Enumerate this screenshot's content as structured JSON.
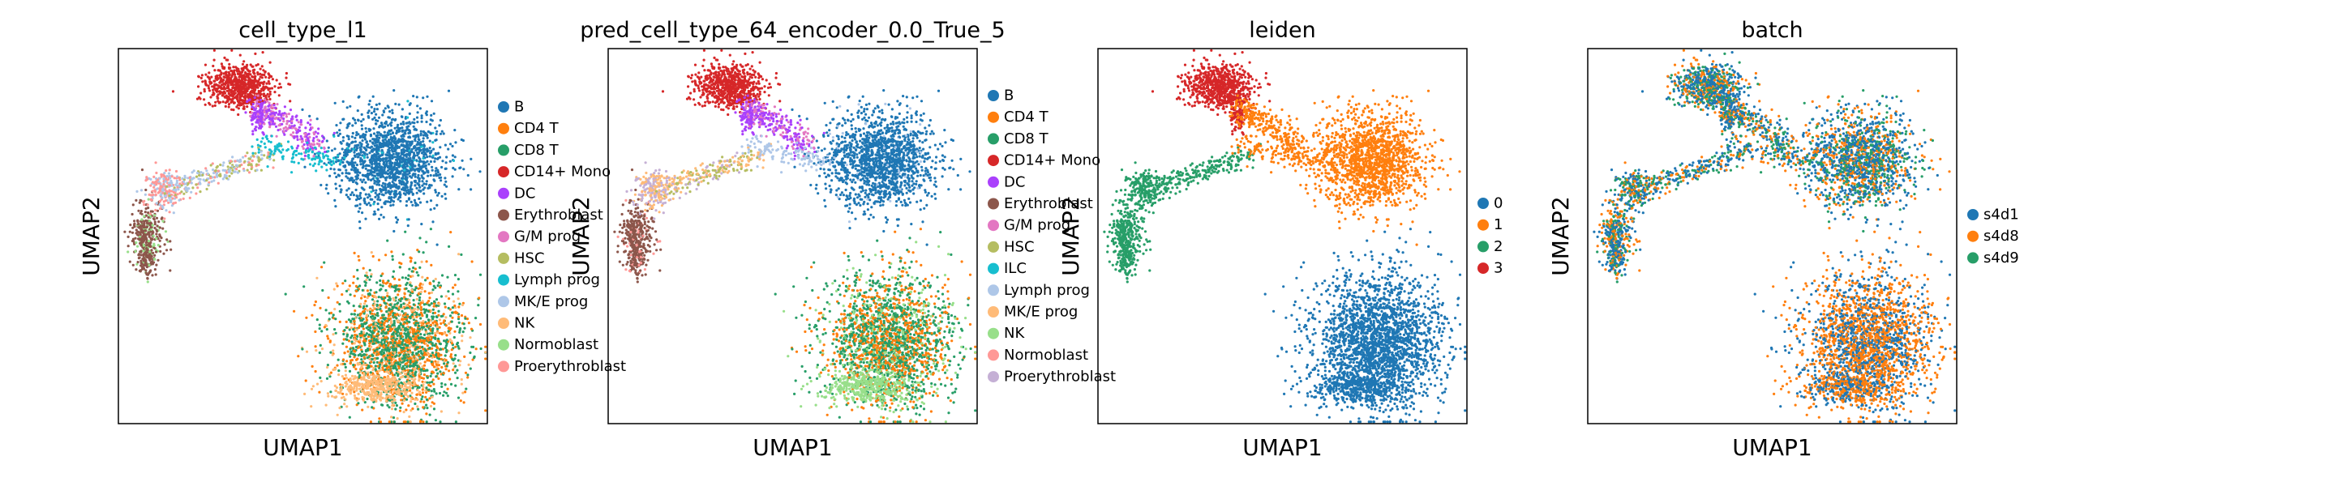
{
  "chart_data": [
    {
      "type": "scatter",
      "title": "cell_type_l1",
      "xlabel": "UMAP1",
      "ylabel": "UMAP2",
      "legend_placement": "right",
      "grid": false,
      "legend": [
        {
          "label": "B",
          "color": "#1f77b4"
        },
        {
          "label": "CD4 T",
          "color": "#ff7f0e"
        },
        {
          "label": "CD8 T",
          "color": "#279e68"
        },
        {
          "label": "CD14+ Mono",
          "color": "#d62728"
        },
        {
          "label": "DC",
          "color": "#aa40fc"
        },
        {
          "label": "Erythroblast",
          "color": "#8c564b"
        },
        {
          "label": "G/M prog",
          "color": "#e377c2"
        },
        {
          "label": "HSC",
          "color": "#b5bd61"
        },
        {
          "label": "Lymph prog",
          "color": "#17becf"
        },
        {
          "label": "MK/E prog",
          "color": "#aec7e8"
        },
        {
          "label": "NK",
          "color": "#ffbb78"
        },
        {
          "label": "Normoblast",
          "color": "#98df8a"
        },
        {
          "label": "Proerythroblast",
          "color": "#ff9896"
        }
      ]
    },
    {
      "type": "scatter",
      "title": "pred_cell_type_64_encoder_0.0_True_5",
      "xlabel": "UMAP1",
      "ylabel": "UMAP2",
      "legend_placement": "right",
      "grid": false,
      "legend": [
        {
          "label": "B",
          "color": "#1f77b4"
        },
        {
          "label": "CD4 T",
          "color": "#ff7f0e"
        },
        {
          "label": "CD8 T",
          "color": "#279e68"
        },
        {
          "label": "CD14+ Mono",
          "color": "#d62728"
        },
        {
          "label": "DC",
          "color": "#aa40fc"
        },
        {
          "label": "Erythroblast",
          "color": "#8c564b"
        },
        {
          "label": "G/M prog",
          "color": "#e377c2"
        },
        {
          "label": "HSC",
          "color": "#b5bd61"
        },
        {
          "label": "ILC",
          "color": "#17becf"
        },
        {
          "label": "Lymph prog",
          "color": "#aec7e8"
        },
        {
          "label": "MK/E prog",
          "color": "#ffbb78"
        },
        {
          "label": "NK",
          "color": "#98df8a"
        },
        {
          "label": "Normoblast",
          "color": "#ff9896"
        },
        {
          "label": "Proerythroblast",
          "color": "#c5b0d5"
        }
      ]
    },
    {
      "type": "scatter",
      "title": "leiden",
      "xlabel": "UMAP1",
      "ylabel": "UMAP2",
      "legend_placement": "right",
      "grid": false,
      "legend": [
        {
          "label": "0",
          "color": "#1f77b4"
        },
        {
          "label": "1",
          "color": "#ff7f0e"
        },
        {
          "label": "2",
          "color": "#279e68"
        },
        {
          "label": "3",
          "color": "#d62728"
        }
      ]
    },
    {
      "type": "scatter",
      "title": "batch",
      "xlabel": "UMAP1",
      "ylabel": "UMAP2",
      "legend_placement": "right",
      "grid": false,
      "legend": [
        {
          "label": "s4d1",
          "color": "#1f77b4"
        },
        {
          "label": "s4d8",
          "color": "#ff7f0e"
        },
        {
          "label": "s4d9",
          "color": "#279e68"
        }
      ]
    }
  ]
}
